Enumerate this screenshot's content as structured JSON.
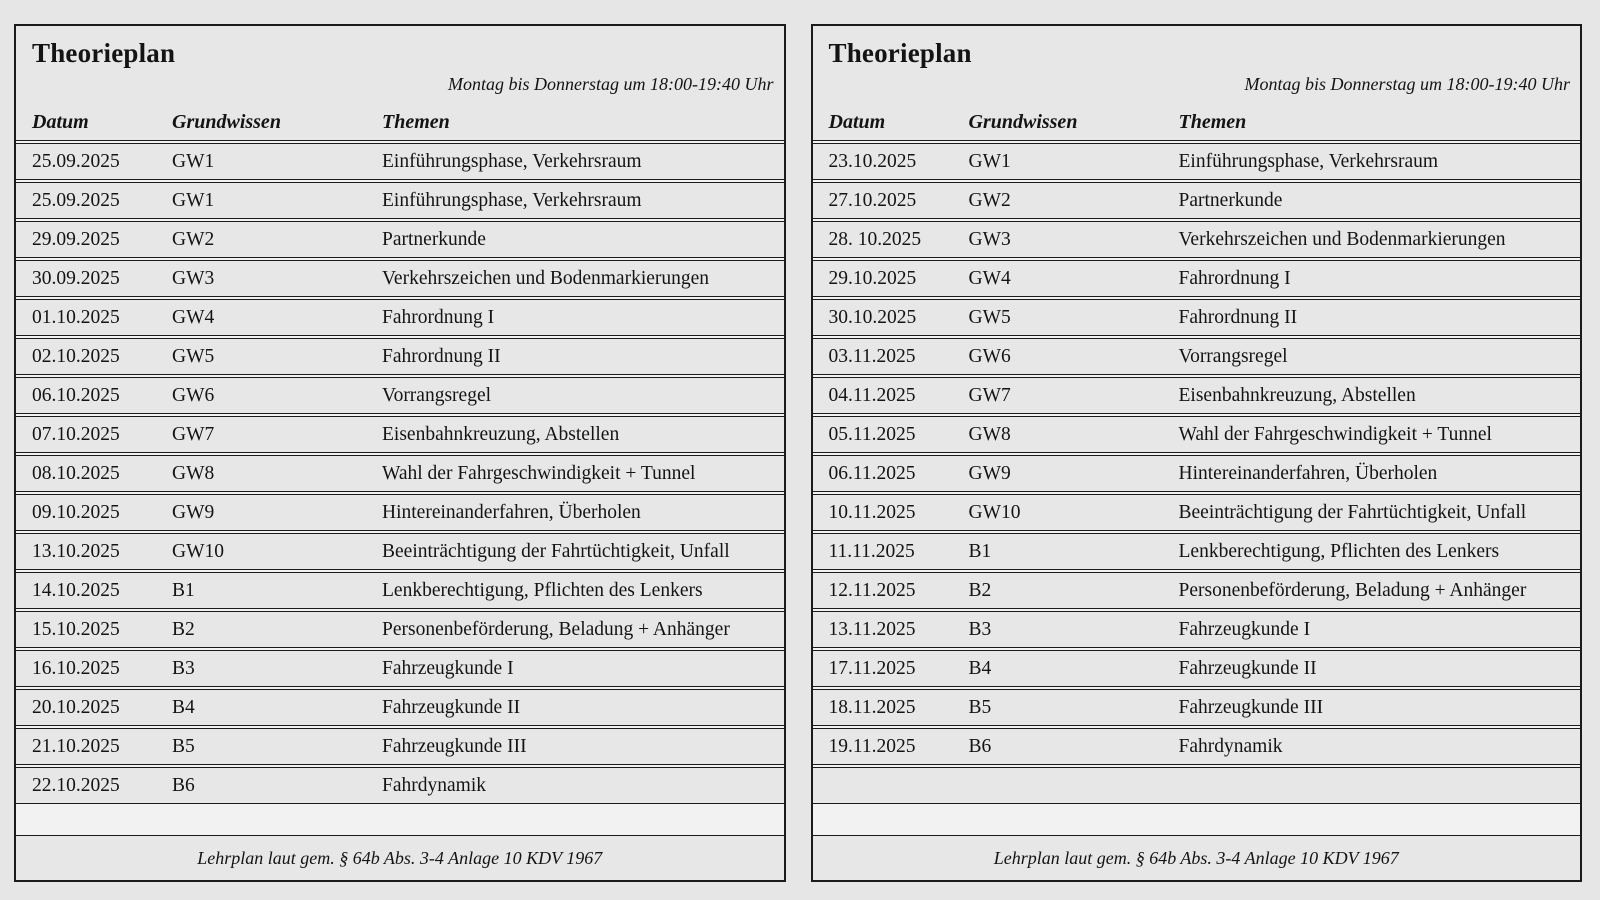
{
  "page": {
    "background_color": "#e6e6e6",
    "cell_color": "#e7e7e7",
    "border_color": "#1b1b1b"
  },
  "tables": [
    {
      "title": "Theorieplan",
      "schedule": "Montag bis Donnerstag um 18:00-19:40 Uhr",
      "columns": {
        "datum": "Datum",
        "grundwissen": "Grundwissen",
        "themen": "Themen"
      },
      "rows": [
        [
          "25.09.2025",
          "GW1",
          "Einführungsphase, Verkehrsraum"
        ],
        [
          "25.09.2025",
          "GW1",
          "Einführungsphase, Verkehrsraum"
        ],
        [
          "29.09.2025",
          "GW2",
          "Partnerkunde"
        ],
        [
          "30.09.2025",
          "GW3",
          "Verkehrszeichen und Bodenmarkierungen"
        ],
        [
          "01.10.2025",
          "GW4",
          "Fahrordnung I"
        ],
        [
          "02.10.2025",
          "GW5",
          "Fahrordnung II"
        ],
        [
          "06.10.2025",
          "GW6",
          "Vorrangsregel"
        ],
        [
          "07.10.2025",
          "GW7",
          "Eisenbahnkreuzung, Abstellen"
        ],
        [
          "08.10.2025",
          "GW8",
          "Wahl der Fahrgeschwindigkeit + Tunnel"
        ],
        [
          "09.10.2025",
          "GW9",
          "Hintereinanderfahren, Überholen"
        ],
        [
          "13.10.2025",
          "GW10",
          "Beeinträchtigung der Fahrtüchtigkeit, Unfall"
        ],
        [
          "14.10.2025",
          "B1",
          "Lenkberechtigung, Pflichten des Lenkers"
        ],
        [
          "15.10.2025",
          "B2",
          "Personenbeförderung, Beladung + Anhänger"
        ],
        [
          "16.10.2025",
          "B3",
          "Fahrzeugkunde I"
        ],
        [
          "20.10.2025",
          "B4",
          "Fahrzeugkunde II"
        ],
        [
          "21.10.2025",
          "B5",
          "Fahrzeugkunde III"
        ],
        [
          "22.10.2025",
          "B6",
          "Fahrdynamik"
        ]
      ],
      "footer": "Lehrplan laut gem. § 64b Abs. 3-4 Anlage 10 KDV 1967"
    },
    {
      "title": "Theorieplan",
      "schedule": "Montag bis Donnerstag um 18:00-19:40 Uhr",
      "columns": {
        "datum": "Datum",
        "grundwissen": "Grundwissen",
        "themen": "Themen"
      },
      "rows": [
        [
          "23.10.2025",
          "GW1",
          "Einführungsphase, Verkehrsraum"
        ],
        [
          "27.10.2025",
          "GW2",
          "Partnerkunde"
        ],
        [
          "28. 10.2025",
          "GW3",
          "Verkehrszeichen und Bodenmarkierungen"
        ],
        [
          "29.10.2025",
          "GW4",
          "Fahrordnung I"
        ],
        [
          "30.10.2025",
          "GW5",
          "Fahrordnung II"
        ],
        [
          "03.11.2025",
          "GW6",
          "Vorrangsregel"
        ],
        [
          "04.11.2025",
          "GW7",
          "Eisenbahnkreuzung, Abstellen"
        ],
        [
          "05.11.2025",
          "GW8",
          "Wahl der Fahrgeschwindigkeit + Tunnel"
        ],
        [
          "06.11.2025",
          "GW9",
          "Hintereinanderfahren, Überholen"
        ],
        [
          "10.11.2025",
          "GW10",
          "Beeinträchtigung der Fahrtüchtigkeit, Unfall"
        ],
        [
          "11.11.2025",
          "B1",
          "Lenkberechtigung, Pflichten des Lenkers"
        ],
        [
          "12.11.2025",
          "B2",
          "Personenbeförderung, Beladung + Anhänger"
        ],
        [
          "13.11.2025",
          "B3",
          "Fahrzeugkunde I"
        ],
        [
          "17.11.2025",
          "B4",
          "Fahrzeugkunde II"
        ],
        [
          "18.11.2025",
          "B5",
          "Fahrzeugkunde III"
        ],
        [
          "19.11.2025",
          "B6",
          "Fahrdynamik"
        ],
        [
          "",
          "",
          ""
        ]
      ],
      "footer": "Lehrplan laut gem. § 64b Abs. 3-4 Anlage 10 KDV 1967"
    }
  ]
}
